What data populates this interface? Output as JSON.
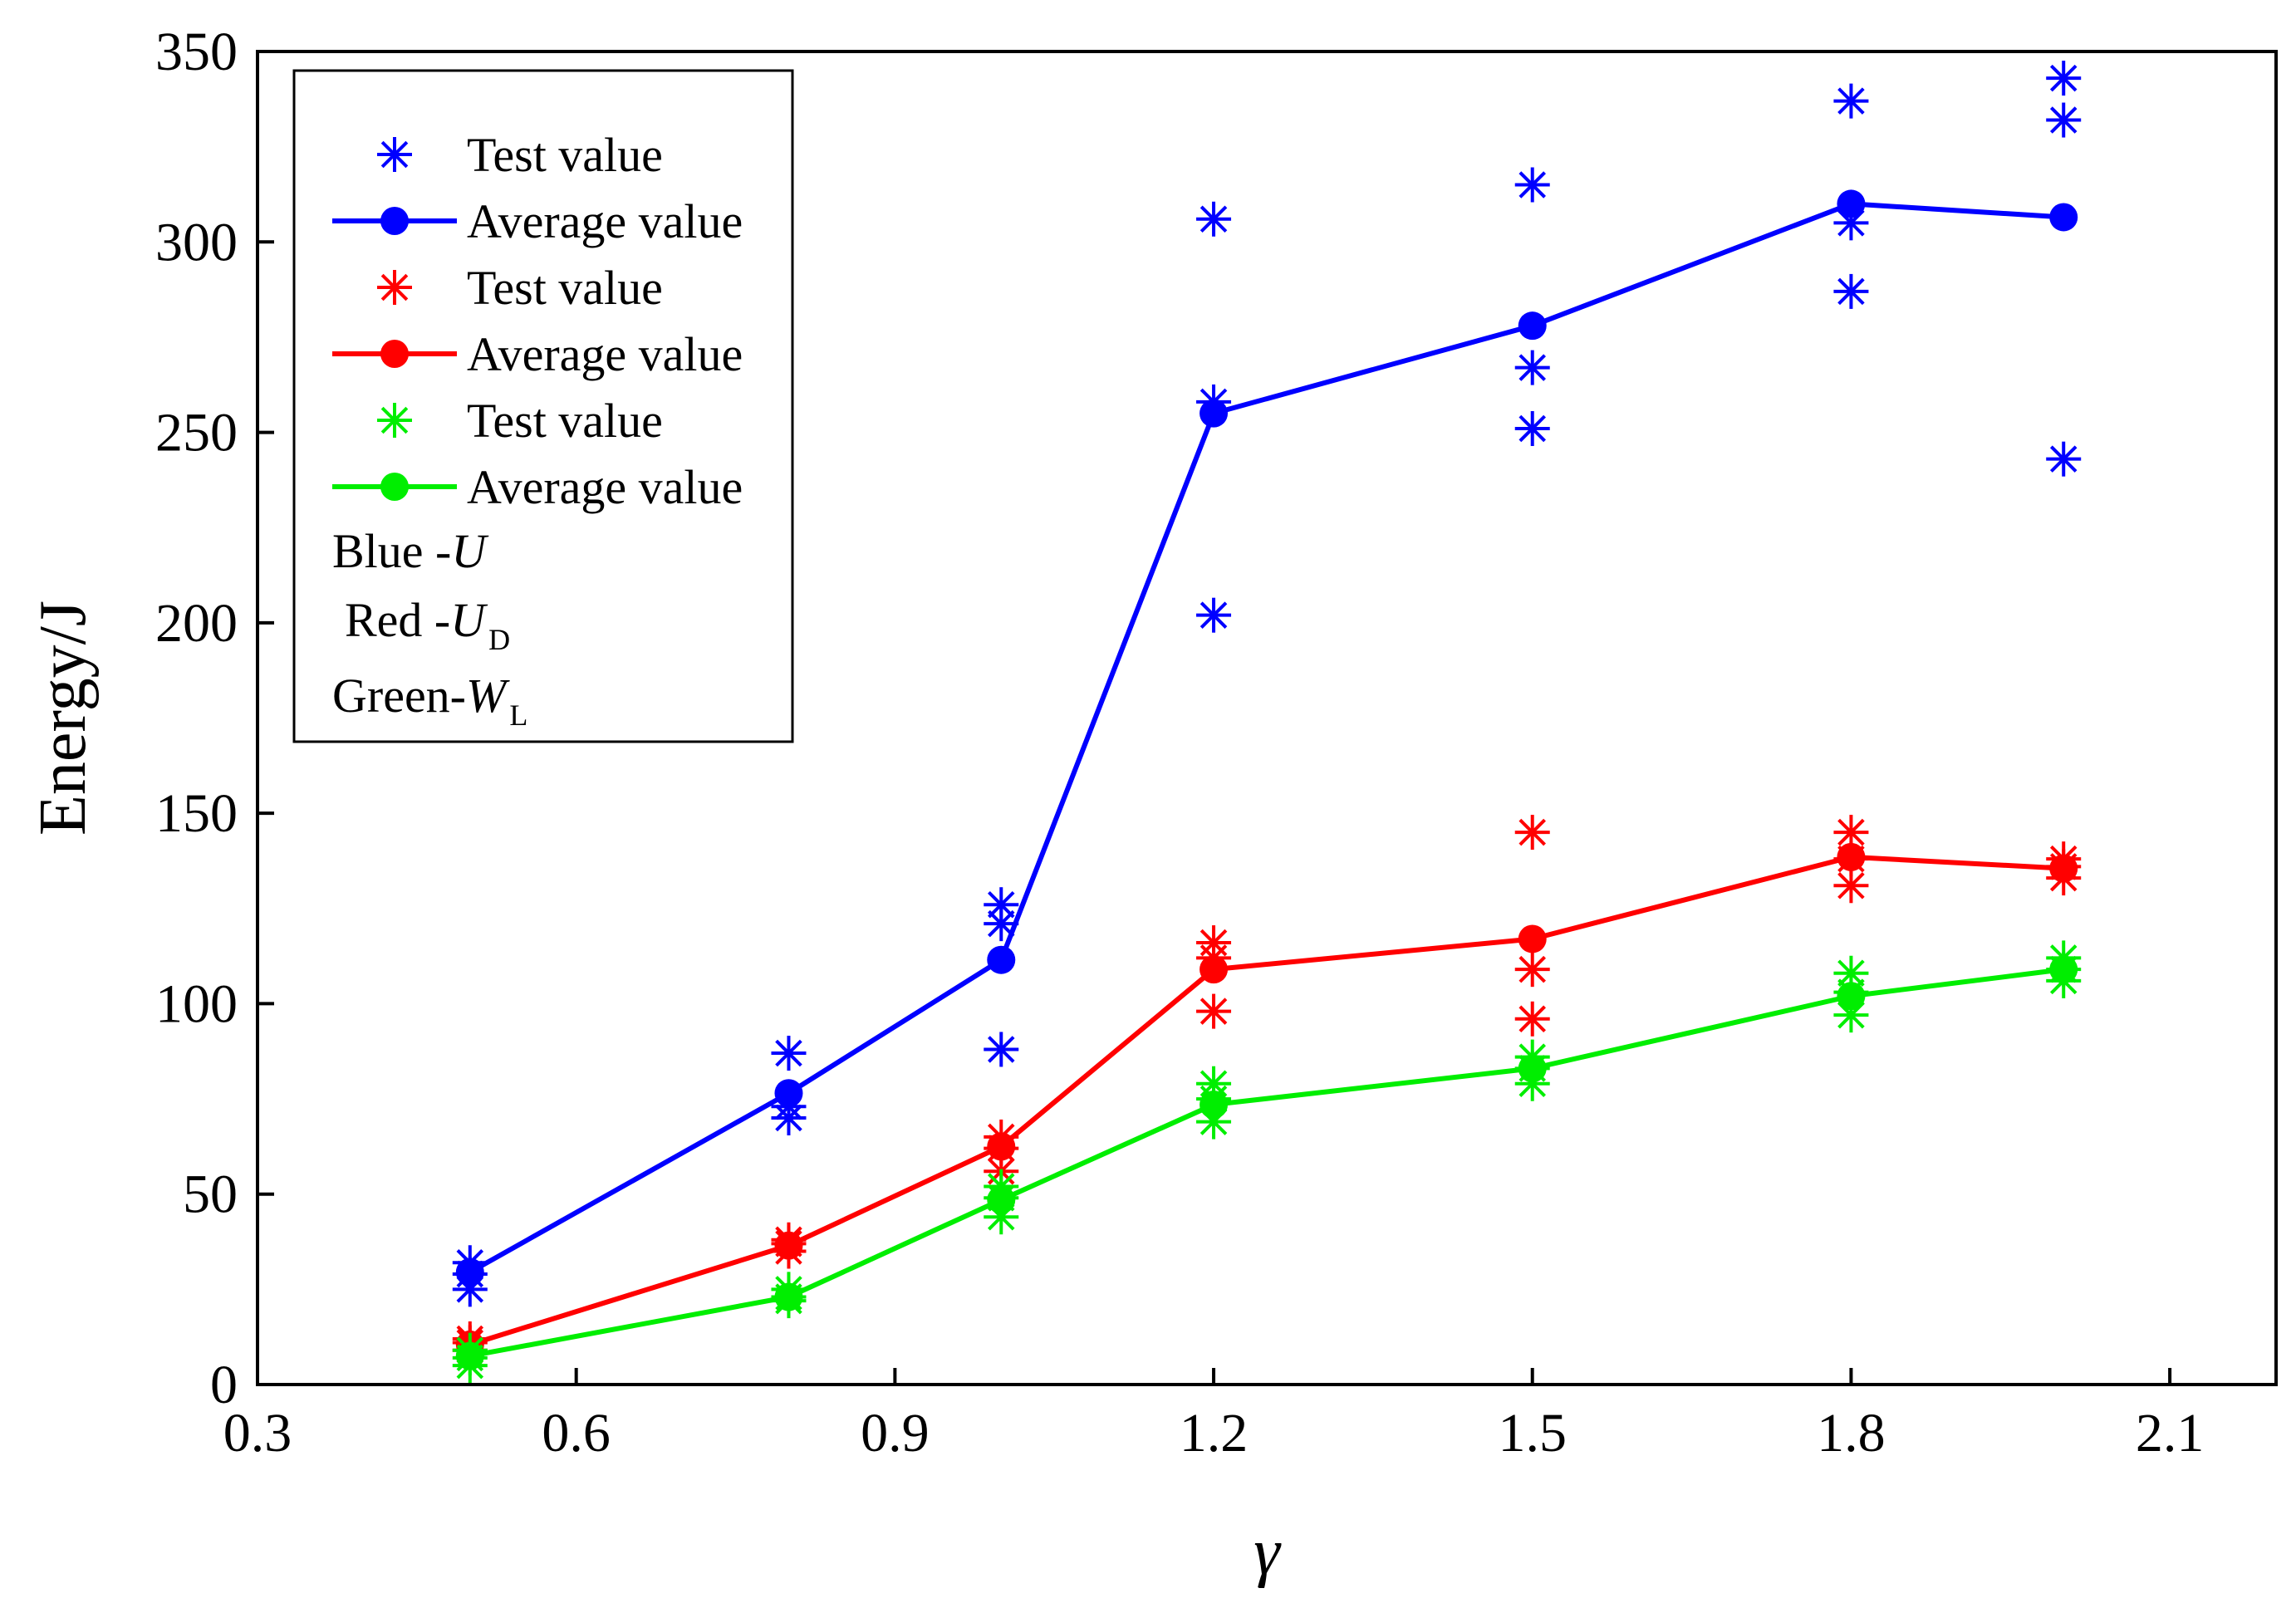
{
  "chart_data": {
    "type": "line",
    "title": "",
    "xlabel": "γ",
    "ylabel": "Energy/J",
    "xlim": [
      0.3,
      2.2
    ],
    "ylim": [
      0,
      350
    ],
    "xticks": [
      0.3,
      0.6,
      0.9,
      1.2,
      1.5,
      1.8,
      2.1
    ],
    "xtick_labels": [
      "0.3",
      "0.6",
      "0.9",
      "1.2",
      "1.5",
      "1.8",
      "2.1"
    ],
    "yticks": [
      0,
      50,
      100,
      150,
      200,
      250,
      300,
      350
    ],
    "ytick_labels": [
      "0",
      "50",
      "100",
      "150",
      "200",
      "250",
      "300",
      "350"
    ],
    "grid": false,
    "legend_position": "top-left",
    "x": [
      0.5,
      0.8,
      1.0,
      1.2,
      1.5,
      1.8,
      2.0
    ],
    "series": [
      {
        "name": "U",
        "color": "#0000ff",
        "average_label": "Average value",
        "test_label": "Test value",
        "average": [
          29.5,
          76.5,
          111.5,
          255,
          278,
          310,
          306.5
        ],
        "tests": [
          [
            25,
            32,
            29
          ],
          [
            70,
            73,
            87
          ],
          [
            88,
            121,
            126
          ],
          [
            202,
            258,
            306
          ],
          [
            251,
            267,
            315
          ],
          [
            287,
            305,
            337
          ],
          [
            243,
            332,
            343
          ]
        ]
      },
      {
        "name": "UD",
        "color": "#ff0000",
        "average_label": "Average value",
        "test_label": "Test value",
        "average": [
          10.5,
          36.5,
          62.5,
          109,
          117,
          138.5,
          135.5
        ],
        "tests": [
          [
            9,
            11,
            12
          ],
          [
            35,
            37,
            38
          ],
          [
            56,
            62,
            65
          ],
          [
            98,
            112,
            116
          ],
          [
            96,
            109,
            145
          ],
          [
            131,
            138,
            145
          ],
          [
            133,
            136,
            138
          ]
        ]
      },
      {
        "name": "WL",
        "color": "#00ee00",
        "average_label": "Average value",
        "test_label": "Test value",
        "average": [
          7.5,
          23,
          48.5,
          73.5,
          83,
          102,
          109
        ],
        "tests": [
          [
            5,
            7,
            9
          ],
          [
            22,
            23,
            25
          ],
          [
            44,
            49,
            52
          ],
          [
            69,
            75,
            79
          ],
          [
            79,
            83,
            86
          ],
          [
            97,
            103,
            108
          ],
          [
            106,
            109,
            112
          ]
        ]
      }
    ],
    "legend": {
      "entries": [
        {
          "label": "Test value",
          "marker": "asterisk",
          "color": "#0000ff"
        },
        {
          "label": "Average value",
          "marker": "line-dot",
          "color": "#0000ff"
        },
        {
          "label": "Test value",
          "marker": "asterisk",
          "color": "#ff0000"
        },
        {
          "label": "Average value",
          "marker": "line-dot",
          "color": "#ff0000"
        },
        {
          "label": "Test value",
          "marker": "asterisk",
          "color": "#00ee00"
        },
        {
          "label": "Average value",
          "marker": "line-dot",
          "color": "#00ee00"
        }
      ],
      "notes": [
        {
          "prefix": "Blue -",
          "var": "U",
          "sub": ""
        },
        {
          "prefix": "Red -",
          "var": "U",
          "sub": "D"
        },
        {
          "prefix": "Green-",
          "var": "W",
          "sub": "L"
        }
      ]
    }
  }
}
